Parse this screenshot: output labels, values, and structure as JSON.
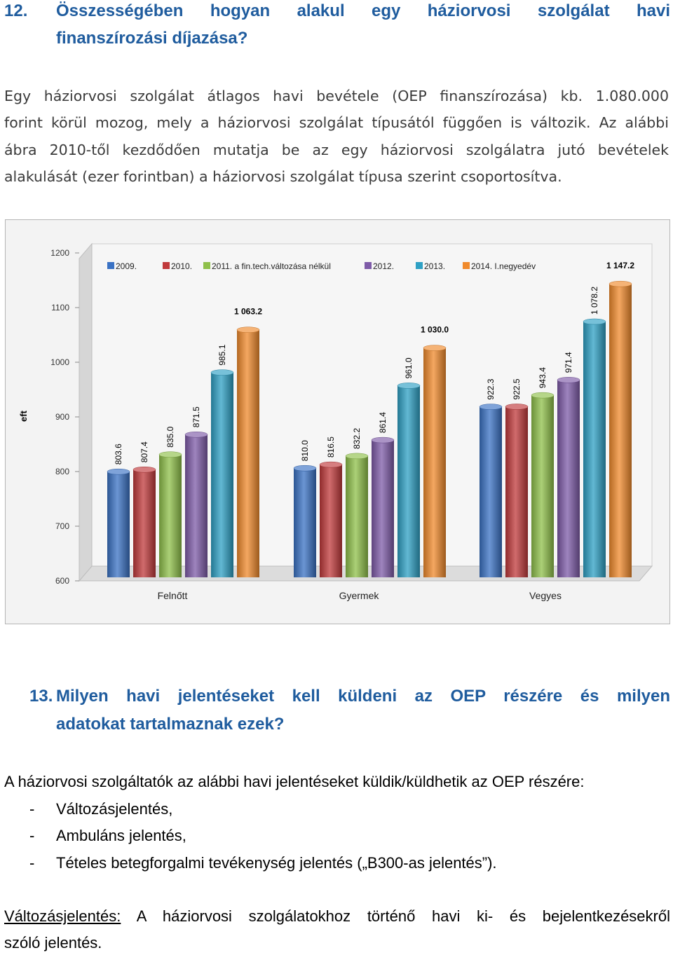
{
  "section12": {
    "number": "12.",
    "title_line1": "Összességében hogyan alakul egy háziorvosi szolgálat havi",
    "title_line2": "finanszírozási díjazása?",
    "para_lines": [
      "Egy háziorvosi szolgálat átlagos havi bevétele (OEP finanszírozása) kb. 1.080.000",
      "forint körül mozog, mely a háziorvosi szolgálat típusától függően is változik. Az alábbi",
      "ábra 2010-től kezdődően mutatja be az egy háziorvosi szolgálatra jutó bevételek",
      "alakulását (ezer forintban) a háziorvosi szolgálat típusa szerint csoportosítva."
    ]
  },
  "chart_data": {
    "type": "bar",
    "ylabel": "eft",
    "ylim": [
      600,
      1200
    ],
    "yticks": [
      600,
      700,
      800,
      900,
      1000,
      1100,
      1200
    ],
    "categories": [
      "Felnőtt",
      "Gyermek",
      "Vegyes"
    ],
    "series": [
      {
        "name": "2009.",
        "color": "#3a72c4",
        "values": [
          803.6,
          810.0,
          922.3
        ],
        "labels": [
          "803.6",
          "810.0",
          "922.3"
        ]
      },
      {
        "name": "2010.",
        "color": "#c0393b",
        "values": [
          807.4,
          816.5,
          922.5
        ],
        "labels": [
          "807.4",
          "816.5",
          "922.5"
        ]
      },
      {
        "name": "2011. a fin.tech.változása nélkül",
        "color": "#8fc04a",
        "values": [
          835.0,
          832.2,
          943.4
        ],
        "labels": [
          "835.0",
          "832.2",
          "943.4"
        ]
      },
      {
        "name": "2012.",
        "color": "#7e5ba8",
        "values": [
          871.5,
          861.4,
          971.4
        ],
        "labels": [
          "871.5",
          "861.4",
          "971.4"
        ]
      },
      {
        "name": "2013.",
        "color": "#2ea0c4",
        "values": [
          985.1,
          961.0,
          1078.2
        ],
        "labels": [
          "985.1",
          "961.0",
          "1 078.2"
        ]
      },
      {
        "name": "2014. I.negyedév",
        "color": "#f08a2c",
        "values": [
          1063.2,
          1030.0,
          1147.2
        ],
        "labels": [
          "1 063.2",
          "1 030.0",
          "1 147.2"
        ]
      }
    ],
    "grid": false,
    "legend": "top"
  },
  "section13": {
    "number": "13.",
    "title_line1": "Milyen havi jelentéseket kell küldeni az OEP részére és milyen",
    "title_line2": "adatokat tartalmaznak ezek?",
    "intro": "A háziorvosi szolgáltatók az alábbi havi jelentéseket küldik/küldhetik az OEP részére:",
    "items": [
      "Változásjelentés,",
      "Ambuláns jelentés,",
      "Tételes betegforgalmi tevékenység jelentés („B300-as jelentés”)."
    ],
    "bullet": "-",
    "def_term": "Változásjelentés:",
    "def_text_line1": " A háziorvosi szolgálatokhoz történő havi ki- és bejelentkezésekről",
    "def_text_line2": "szóló jelentés."
  }
}
